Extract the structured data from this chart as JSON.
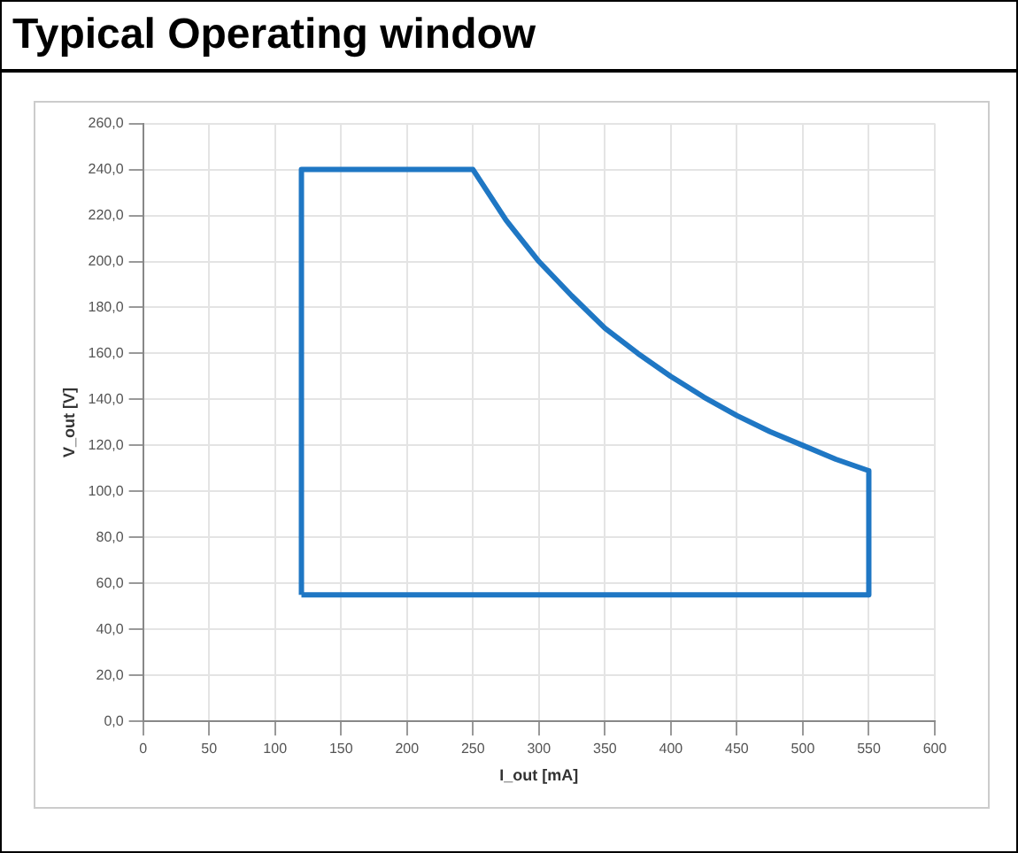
{
  "chart_data": {
    "type": "line",
    "title": "Typical Operating window",
    "xlabel": "I_out [mA]",
    "ylabel": "V_out [V]",
    "series": [
      {
        "color": "#1f77c4",
        "x": [
          120,
          120,
          250,
          275,
          300,
          325,
          350,
          375,
          400,
          425,
          450,
          475,
          500,
          525,
          550,
          550
        ],
        "values": [
          55,
          240,
          240,
          218,
          200,
          185,
          171,
          160,
          150,
          141,
          133,
          126,
          120,
          114,
          109,
          55
        ]
      },
      {
        "color": "#1f77c4",
        "x": [
          120,
          550
        ],
        "values": [
          55,
          55
        ]
      }
    ],
    "xlim": [
      0,
      600
    ],
    "xticks": [
      0,
      50,
      100,
      150,
      200,
      250,
      300,
      350,
      400,
      450,
      500,
      550,
      600
    ],
    "ylim": [
      0,
      260
    ],
    "yticks": [
      {
        "value": 0,
        "label": "0,0"
      },
      {
        "value": 20,
        "label": "20,0"
      },
      {
        "value": 40,
        "label": "40,0"
      },
      {
        "value": 60,
        "label": "60,0"
      },
      {
        "value": 80,
        "label": "80,0"
      },
      {
        "value": 100,
        "label": "100,0"
      },
      {
        "value": 120,
        "label": "120,0"
      },
      {
        "value": 140,
        "label": "140,0"
      },
      {
        "value": 160,
        "label": "160,0"
      },
      {
        "value": 180,
        "label": "180,0"
      },
      {
        "value": 200,
        "label": "200,0"
      },
      {
        "value": 220,
        "label": "220,0"
      },
      {
        "value": 240,
        "label": "240,0"
      },
      {
        "value": 260,
        "label": "260,0"
      }
    ],
    "grid": true,
    "legend": false,
    "marker": "none",
    "line_style": "solid"
  }
}
